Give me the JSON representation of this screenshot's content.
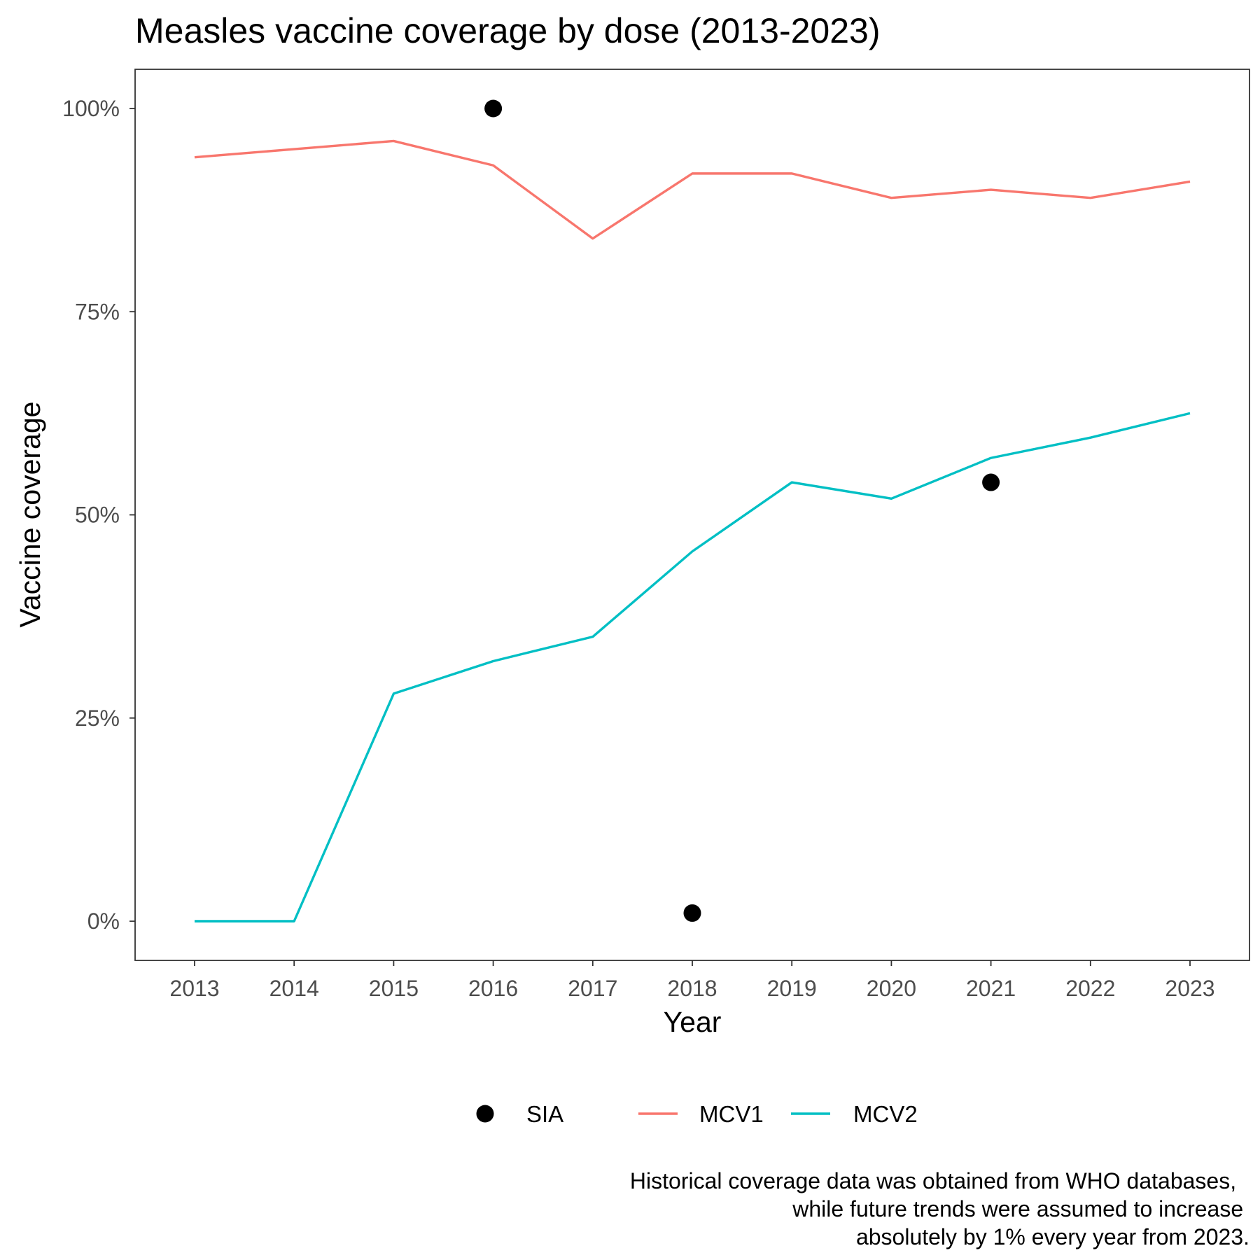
{
  "chart_data": {
    "type": "line",
    "title": "Measles vaccine coverage by dose (2013-2023)",
    "xlabel": "Year",
    "ylabel": "Vaccine coverage",
    "x": [
      "2013",
      "2014",
      "2015",
      "2016",
      "2017",
      "2018",
      "2019",
      "2020",
      "2021",
      "2022",
      "2023"
    ],
    "y_ticks": [
      0,
      25,
      50,
      75,
      100
    ],
    "y_tick_labels": [
      "0%",
      "25%",
      "50%",
      "75%",
      "100%"
    ],
    "ylim": [
      -5,
      105
    ],
    "grid": false,
    "series": [
      {
        "name": "MCV1",
        "color": "#F8766D",
        "values": [
          94,
          95,
          96,
          93,
          84,
          92,
          92,
          89,
          90,
          89,
          91
        ]
      },
      {
        "name": "MCV2",
        "color": "#00BFC4",
        "values": [
          0,
          0,
          28,
          32,
          35,
          45.5,
          54,
          52,
          57,
          59.5,
          62.5
        ]
      }
    ],
    "points": {
      "name": "SIA",
      "color": "#000000",
      "data": [
        {
          "x": "2016",
          "y": 100
        },
        {
          "x": "2018",
          "y": 1
        },
        {
          "x": "2021",
          "y": 54
        }
      ]
    },
    "legend_position": "bottom",
    "legend": [
      {
        "label": "SIA",
        "kind": "point",
        "color": "#000000"
      },
      {
        "label": "MCV1",
        "kind": "line",
        "color": "#F8766D"
      },
      {
        "label": "MCV2",
        "kind": "line",
        "color": "#00BFC4"
      }
    ],
    "caption": [
      "Historical coverage data was obtained from WHO databases,",
      "while future trends were assumed to increase",
      "absolutely by 1% every year from 2023."
    ]
  }
}
